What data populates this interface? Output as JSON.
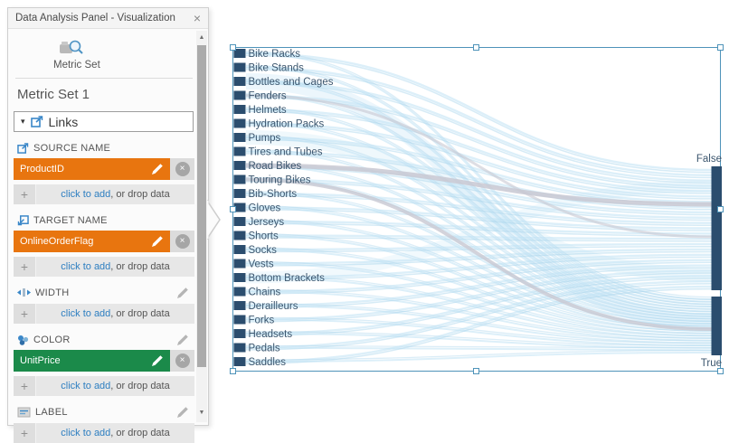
{
  "panel": {
    "title": "Data Analysis Panel - Visualization",
    "close": "×",
    "metric_set_label": "Metric Set",
    "metric_set_name": "Metric Set 1",
    "links_label": "Links",
    "caret": "▾",
    "plus": "+",
    "x": "×",
    "scroll_up": "▲",
    "scroll_down": "▼",
    "add_row": {
      "link": "click to add",
      "rest": ", or drop data"
    },
    "sections": {
      "source": {
        "label": "SOURCE NAME",
        "value": "ProductID"
      },
      "target": {
        "label": "TARGET NAME",
        "value": "OnlineOrderFlag"
      },
      "width": {
        "label": "WIDTH"
      },
      "color": {
        "label": "COLOR",
        "value": "UnitPrice"
      },
      "label": {
        "label": "LABEL"
      }
    }
  },
  "chart_data": {
    "type": "sankey",
    "sources": [
      "Bike Racks",
      "Bike Stands",
      "Bottles and Cages",
      "Fenders",
      "Helmets",
      "Hydration Packs",
      "Pumps",
      "Tires and Tubes",
      "Road Bikes",
      "Touring Bikes",
      "Bib-Shorts",
      "Gloves",
      "Jerseys",
      "Shorts",
      "Socks",
      "Vests",
      "Bottom Brackets",
      "Chains",
      "Derailleurs",
      "Forks",
      "Headsets",
      "Pedals",
      "Saddles"
    ],
    "targets": [
      "False",
      "True"
    ],
    "links_note": "each product node flows with thin ribbons to both False and True",
    "colors": {
      "node": "#2b4d6e",
      "link_blue": "#bfe2f4",
      "link_blue_dark": "#a5d2ec",
      "link_gray": "#c8c8d2",
      "selection": "#4e93b9",
      "label_text": "#3c566e",
      "field_orange": "#e8750f",
      "field_green": "#1b8a4a"
    }
  }
}
